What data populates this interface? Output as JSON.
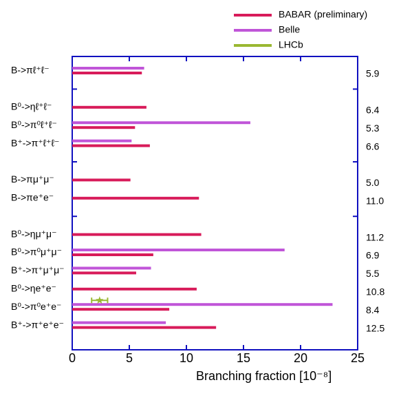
{
  "chart_data": {
    "type": "hbar",
    "categories": [
      "B->πℓ⁺ℓ⁻",
      null,
      "B⁰->ηℓ⁺ℓ⁻",
      "B⁰->π⁰ℓ⁺ℓ⁻",
      "B⁺->π⁺ℓ⁺ℓ⁻",
      null,
      "B->πμ⁺μ⁻",
      "B->πe⁺e⁻",
      null,
      "B⁰->ημ⁺μ⁻",
      "B⁰->π⁰μ⁺μ⁻",
      "B⁺->π⁺μ⁺μ⁻",
      "B⁰->ηe⁺e⁻",
      "B⁰->π⁰e⁺e⁻",
      "B⁺->π⁺e⁺e⁻"
    ],
    "right_labels": [
      "5.9",
      null,
      "6.4",
      "5.3",
      "6.6",
      null,
      "5.0",
      "11.0",
      null,
      "11.2",
      "6.9",
      "5.5",
      "10.8",
      "8.4",
      "12.5"
    ],
    "series": [
      {
        "name": "BABAR (preliminary)",
        "color": "#d81b5a",
        "values": [
          6.1,
          null,
          6.5,
          5.5,
          6.8,
          null,
          5.1,
          11.1,
          null,
          11.3,
          7.1,
          5.6,
          10.9,
          8.5,
          12.6
        ]
      },
      {
        "name": "Belle",
        "color": "#c055d8",
        "values": [
          6.3,
          null,
          null,
          15.6,
          5.2,
          null,
          null,
          null,
          null,
          null,
          18.6,
          6.9,
          null,
          22.8,
          8.2
        ]
      },
      {
        "name": "LHCb",
        "color": "#9ab832",
        "values": [
          null,
          null,
          null,
          null,
          null,
          null,
          null,
          null,
          null,
          null,
          null,
          null,
          null,
          2.4,
          null
        ],
        "errors": [
          null,
          null,
          null,
          null,
          null,
          null,
          null,
          null,
          null,
          null,
          null,
          null,
          null,
          0.7,
          null
        ]
      }
    ],
    "xlabel": "Branching fraction [10⁻⁸]",
    "xlim": [
      0,
      25
    ],
    "xticks": [
      0,
      5,
      10,
      15,
      20,
      25
    ],
    "axis_color": "#1010c0",
    "legend": "top-right"
  }
}
